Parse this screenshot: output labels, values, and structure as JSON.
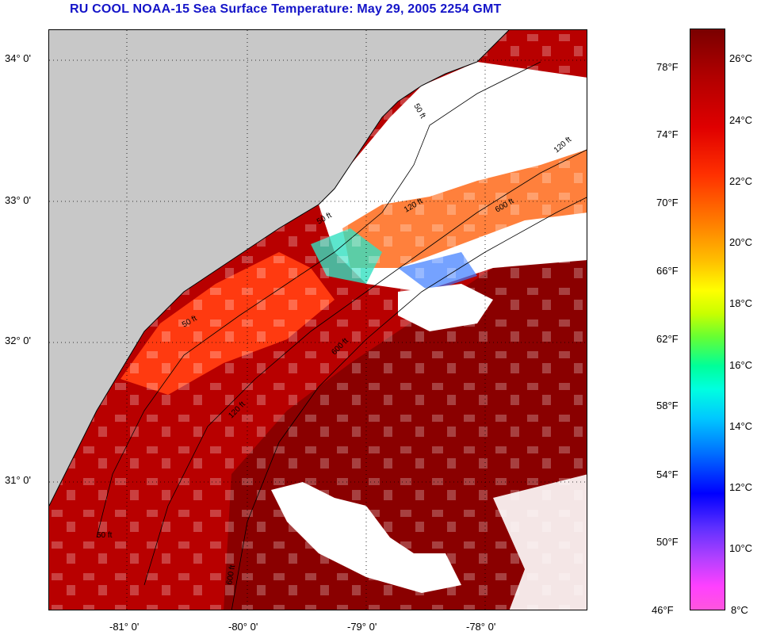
{
  "title": "RU COOL  NOAA-15  Sea Surface Temperature:  May 29, 2005 2254 GMT",
  "latitude_labels": [
    "34° 0'",
    "33° 0'",
    "32° 0'",
    "31° 0'"
  ],
  "longitude_labels": [
    "-81° 0'",
    "-80° 0'",
    "-79° 0'",
    "-78° 0'"
  ],
  "latitude_values": [
    34,
    33,
    32,
    31
  ],
  "longitude_values": [
    -81,
    -80,
    -79,
    -78
  ],
  "isobath_labels": [
    "50 ft",
    "120 ft",
    "600 ft",
    "50 ft",
    "120 ft",
    "600 ft",
    "50 ft",
    "120 ft",
    "600 ft",
    "50 ft"
  ],
  "colorbar": {
    "fahrenheit": [
      "78°F",
      "74°F",
      "70°F",
      "66°F",
      "62°F",
      "58°F",
      "54°F",
      "50°F",
      "46°F"
    ],
    "celsius": [
      "26°C",
      "24°C",
      "22°C",
      "20°C",
      "18°C",
      "16°C",
      "14°C",
      "12°C",
      "10°C",
      "8°C"
    ],
    "range_celsius": [
      8,
      27
    ]
  },
  "colors": {
    "title": "#1414c8",
    "land": "#c8c8c8",
    "cloud": "#ffffff",
    "warm": "#b00000",
    "hot": "#7a0000"
  }
}
